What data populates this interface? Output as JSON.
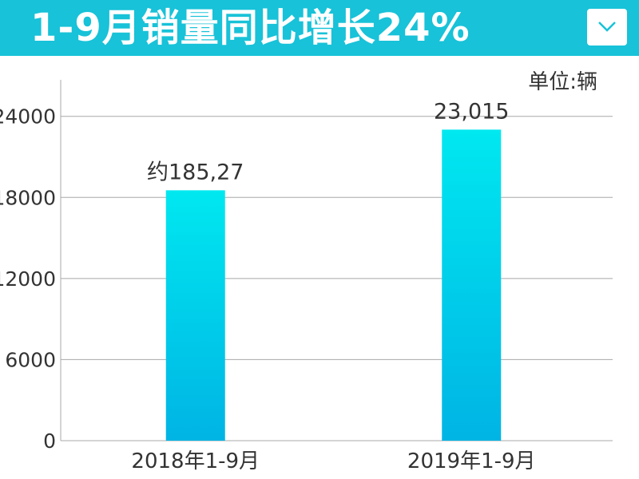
{
  "header": {
    "title": "1-9月销量同比增长24%",
    "dropdown_icon": "chevron-down-icon"
  },
  "colors": {
    "header_bg": "#18c2d8",
    "bar_top": "#00e8f0",
    "bar_bottom": "#00b4e4"
  },
  "chart_data": {
    "type": "bar",
    "unit_label": "单位:辆",
    "categories": [
      "2018年1-9月",
      "2019年1-9月"
    ],
    "values": [
      18527,
      23015
    ],
    "data_labels": [
      "约185,27",
      "23,015"
    ],
    "yticks": [
      0,
      6000,
      12000,
      18000,
      24000
    ],
    "ylim": [
      0,
      26700
    ],
    "grid": true,
    "legend": "none"
  }
}
